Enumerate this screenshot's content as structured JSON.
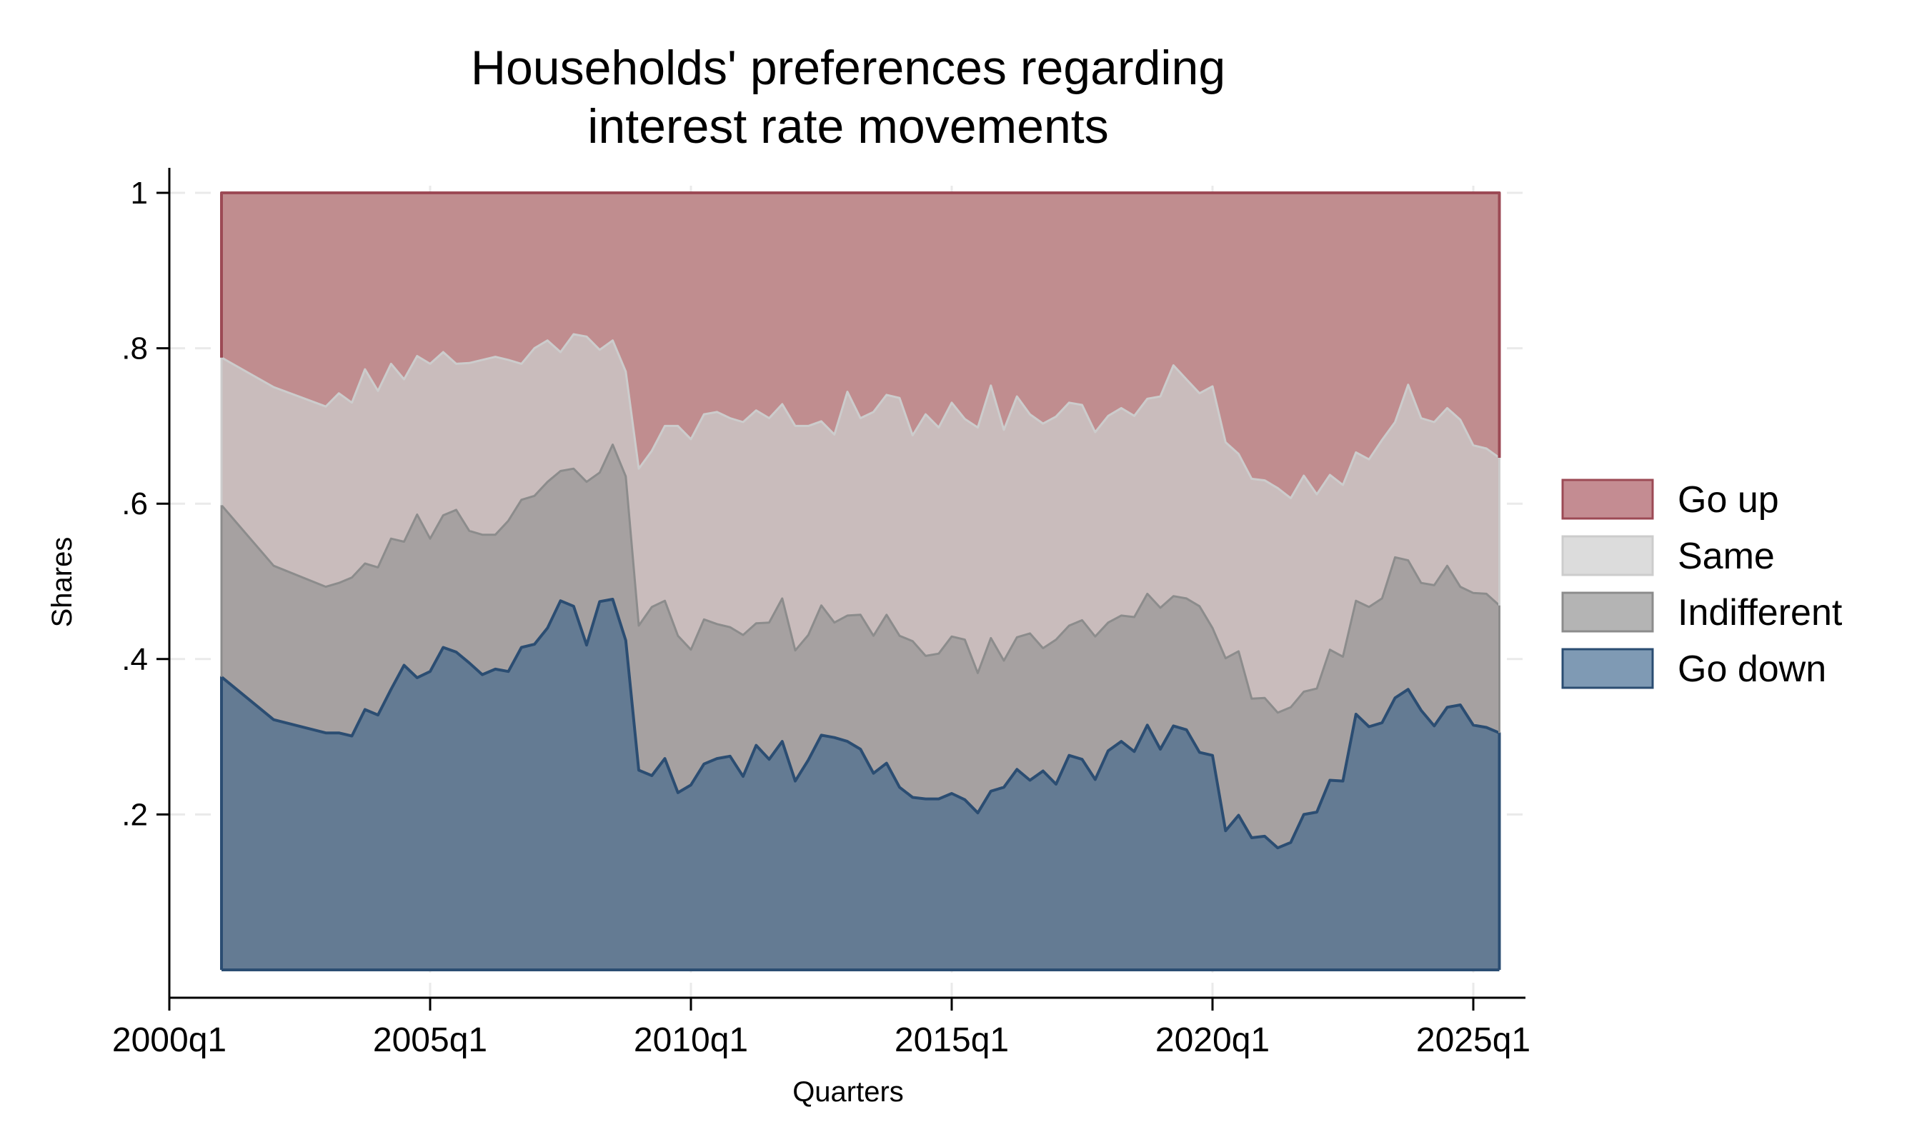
{
  "chart_data": {
    "type": "area",
    "stacked": true,
    "title": [
      "Households' preferences regarding",
      "interest rate movements"
    ],
    "xlabel": "Quarters",
    "ylabel": "Shares",
    "xlim": [
      "2000q1",
      "2026q1"
    ],
    "ylim": [
      0,
      1
    ],
    "grid": true,
    "legend_position": "right",
    "x_ticks": [
      "2000q1",
      "2005q1",
      "2010q1",
      "2015q1",
      "2020q1",
      "2025q1"
    ],
    "y_ticks": [
      {
        "value": 1,
        "label": "1"
      },
      {
        "value": 0.8,
        "label": ".8"
      },
      {
        "value": 0.6,
        "label": ".6"
      },
      {
        "value": 0.4,
        "label": ".4"
      },
      {
        "value": 0.2,
        "label": ".2"
      }
    ],
    "x": [
      "2001q1",
      "2002q1",
      "2003q1",
      "2003q2",
      "2003q3",
      "2003q4",
      "2004q1",
      "2004q2",
      "2004q3",
      "2004q4",
      "2005q1",
      "2005q2",
      "2005q3",
      "2005q4",
      "2006q1",
      "2006q2",
      "2006q3",
      "2006q4",
      "2007q1",
      "2007q2",
      "2007q3",
      "2007q4",
      "2008q1",
      "2008q2",
      "2008q3",
      "2008q4",
      "2009q1",
      "2009q2",
      "2009q3",
      "2009q4",
      "2010q1",
      "2010q2",
      "2010q3",
      "2010q4",
      "2011q1",
      "2011q2",
      "2011q3",
      "2011q4",
      "2012q1",
      "2012q2",
      "2012q3",
      "2012q4",
      "2013q1",
      "2013q2",
      "2013q3",
      "2013q4",
      "2014q1",
      "2014q2",
      "2014q3",
      "2014q4",
      "2015q1",
      "2015q2",
      "2015q3",
      "2015q4",
      "2016q1",
      "2016q2",
      "2016q3",
      "2016q4",
      "2017q1",
      "2017q2",
      "2017q3",
      "2017q4",
      "2018q1",
      "2018q2",
      "2018q3",
      "2018q4",
      "2019q1",
      "2019q2",
      "2019q3",
      "2019q4",
      "2020q1",
      "2020q2",
      "2020q3",
      "2020q4",
      "2021q1",
      "2021q2",
      "2021q3",
      "2021q4",
      "2022q1",
      "2022q2",
      "2022q3",
      "2022q4",
      "2023q1",
      "2023q2",
      "2023q3",
      "2023q4",
      "2024q1",
      "2024q2",
      "2024q3",
      "2024q4",
      "2025q1",
      "2025q2",
      "2025q3"
    ],
    "series": [
      {
        "name": "Go down",
        "fill": "#647b93",
        "line": "#2b4d72",
        "legend_fill": "#7f9ab4",
        "top": [
          0.377,
          0.322,
          0.305,
          0.305,
          0.301,
          0.335,
          0.328,
          0.361,
          0.392,
          0.376,
          0.384,
          0.415,
          0.409,
          0.395,
          0.38,
          0.387,
          0.384,
          0.415,
          0.419,
          0.44,
          0.475,
          0.468,
          0.418,
          0.474,
          0.477,
          0.424,
          0.257,
          0.25,
          0.272,
          0.228,
          0.238,
          0.265,
          0.272,
          0.275,
          0.249,
          0.289,
          0.271,
          0.294,
          0.243,
          0.27,
          0.302,
          0.299,
          0.294,
          0.284,
          0.253,
          0.266,
          0.235,
          0.222,
          0.22,
          0.22,
          0.227,
          0.219,
          0.202,
          0.23,
          0.235,
          0.258,
          0.244,
          0.256,
          0.239,
          0.276,
          0.271,
          0.245,
          0.282,
          0.294,
          0.281,
          0.315,
          0.284,
          0.314,
          0.309,
          0.28,
          0.276,
          0.179,
          0.199,
          0.17,
          0.172,
          0.157,
          0.164,
          0.2,
          0.203,
          0.244,
          0.243,
          0.329,
          0.313,
          0.318,
          0.35,
          0.361,
          0.334,
          0.314,
          0.338,
          0.341,
          0.315,
          0.312,
          0.305
        ]
      },
      {
        "name": "Indifferent",
        "fill": "#a6a1a1",
        "line": "#8c8c8c",
        "legend_fill": "#b4b4b4",
        "top": [
          0.598,
          0.52,
          0.493,
          0.498,
          0.505,
          0.523,
          0.518,
          0.555,
          0.551,
          0.586,
          0.555,
          0.585,
          0.592,
          0.565,
          0.56,
          0.56,
          0.578,
          0.605,
          0.61,
          0.628,
          0.642,
          0.645,
          0.628,
          0.64,
          0.676,
          0.635,
          0.443,
          0.467,
          0.475,
          0.43,
          0.412,
          0.451,
          0.445,
          0.441,
          0.431,
          0.446,
          0.447,
          0.478,
          0.411,
          0.431,
          0.469,
          0.447,
          0.456,
          0.457,
          0.43,
          0.457,
          0.43,
          0.423,
          0.404,
          0.407,
          0.429,
          0.425,
          0.382,
          0.427,
          0.398,
          0.428,
          0.433,
          0.414,
          0.425,
          0.443,
          0.45,
          0.429,
          0.447,
          0.456,
          0.454,
          0.484,
          0.466,
          0.481,
          0.478,
          0.468,
          0.44,
          0.401,
          0.41,
          0.349,
          0.35,
          0.331,
          0.338,
          0.358,
          0.362,
          0.412,
          0.403,
          0.475,
          0.467,
          0.478,
          0.531,
          0.527,
          0.498,
          0.495,
          0.52,
          0.493,
          0.485,
          0.484,
          0.469
        ]
      },
      {
        "name": "Same",
        "fill": "#c9bcbc",
        "line": "#cccccc",
        "legend_fill": "#dcdcdc",
        "top": [
          0.788,
          0.75,
          0.725,
          0.742,
          0.73,
          0.773,
          0.745,
          0.78,
          0.76,
          0.79,
          0.78,
          0.795,
          0.78,
          0.781,
          0.785,
          0.789,
          0.785,
          0.78,
          0.8,
          0.81,
          0.795,
          0.818,
          0.815,
          0.798,
          0.81,
          0.77,
          0.645,
          0.668,
          0.7,
          0.7,
          0.683,
          0.715,
          0.718,
          0.71,
          0.705,
          0.72,
          0.71,
          0.728,
          0.7,
          0.7,
          0.706,
          0.689,
          0.744,
          0.71,
          0.718,
          0.74,
          0.736,
          0.688,
          0.715,
          0.698,
          0.73,
          0.709,
          0.698,
          0.752,
          0.695,
          0.738,
          0.715,
          0.703,
          0.712,
          0.73,
          0.727,
          0.692,
          0.713,
          0.723,
          0.713,
          0.735,
          0.738,
          0.778,
          0.76,
          0.742,
          0.751,
          0.679,
          0.664,
          0.632,
          0.63,
          0.62,
          0.607,
          0.636,
          0.612,
          0.637,
          0.624,
          0.666,
          0.657,
          0.682,
          0.705,
          0.753,
          0.71,
          0.705,
          0.723,
          0.708,
          0.675,
          0.671,
          0.659
        ]
      },
      {
        "name": "Go up",
        "fill": "#c08d8f",
        "line": "#9c4a55",
        "legend_fill": "#c48c92",
        "top": [
          1,
          1,
          1,
          1,
          1,
          1,
          1,
          1,
          1,
          1,
          1,
          1,
          1,
          1,
          1,
          1,
          1,
          1,
          1,
          1,
          1,
          1,
          1,
          1,
          1,
          1,
          1,
          1,
          1,
          1,
          1,
          1,
          1,
          1,
          1,
          1,
          1,
          1,
          1,
          1,
          1,
          1,
          1,
          1,
          1,
          1,
          1,
          1,
          1,
          1,
          1,
          1,
          1,
          1,
          1,
          1,
          1,
          1,
          1,
          1,
          1,
          1,
          1,
          1,
          1,
          1,
          1,
          1,
          1,
          1,
          1,
          1,
          1,
          1,
          1,
          1,
          1,
          1,
          1,
          1,
          1,
          1,
          1,
          1,
          1,
          1,
          1,
          1,
          1,
          1,
          1,
          1,
          1
        ]
      }
    ],
    "legend_order": [
      "Go up",
      "Same",
      "Indifferent",
      "Go down"
    ]
  }
}
